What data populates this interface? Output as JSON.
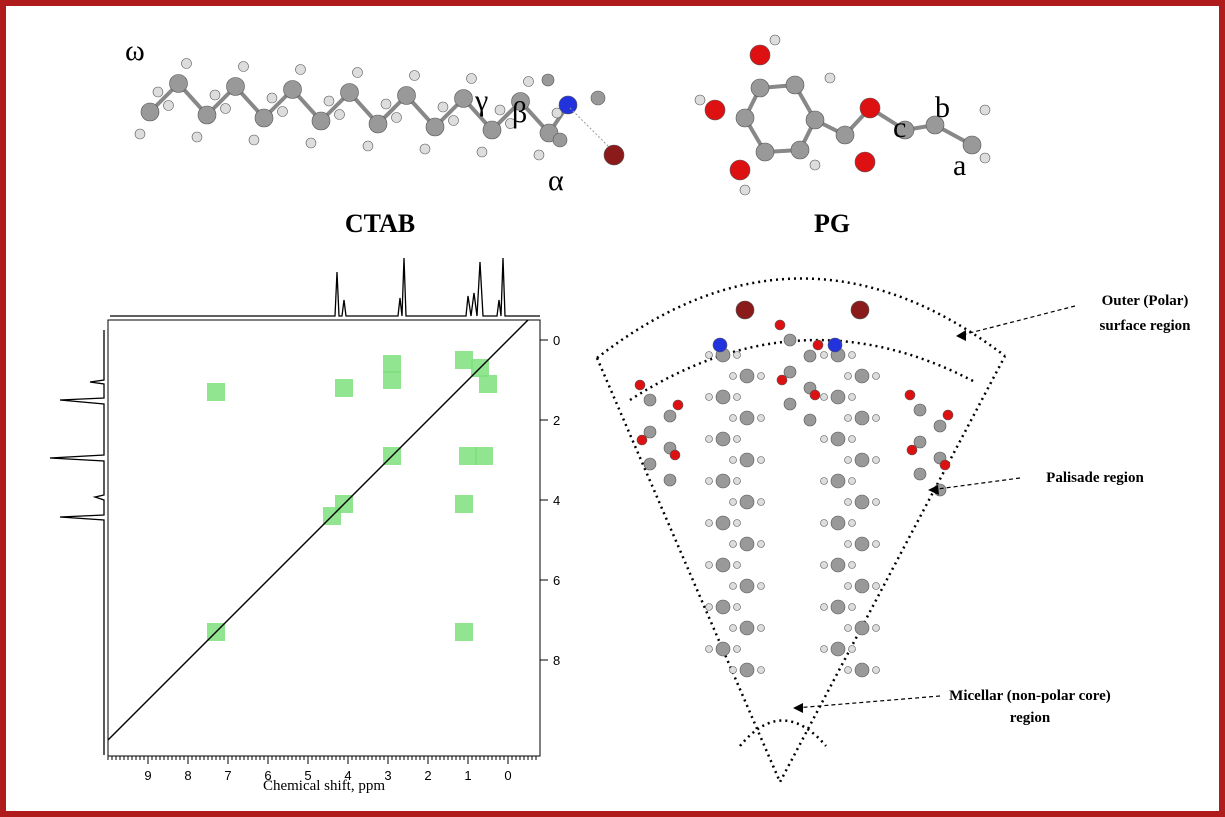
{
  "molecules": [
    {
      "name": "CTAB",
      "labels": [
        "ω",
        "γ",
        "β",
        "α"
      ]
    },
    {
      "name": "PG",
      "labels": [
        "c",
        "b",
        "a"
      ]
    }
  ],
  "nmr": {
    "xlabel": "Chemical shift, ppm",
    "xlim": [
      10,
      -0.8
    ],
    "ylim": [
      -0.5,
      10.4
    ],
    "xticks": [
      9,
      8,
      7,
      6,
      5,
      4,
      3,
      2,
      1,
      0
    ],
    "yticks": [
      0,
      2,
      4,
      6,
      8
    ],
    "cross_peaks": [
      [
        0.7,
        0.7
      ],
      [
        1.1,
        0.5
      ],
      [
        0.5,
        1.1
      ],
      [
        2.9,
        0.6
      ],
      [
        2.9,
        1.0
      ],
      [
        1.0,
        2.9
      ],
      [
        0.6,
        2.9
      ],
      [
        2.9,
        2.9
      ],
      [
        4.4,
        4.4
      ],
      [
        7.3,
        7.3
      ],
      [
        7.3,
        1.3
      ],
      [
        4.1,
        1.2
      ],
      [
        1.1,
        4.1
      ],
      [
        1.1,
        7.3
      ],
      [
        4.1,
        4.1
      ]
    ]
  },
  "regions": [
    {
      "lines": [
        "Outer (Polar)",
        "surface region"
      ]
    },
    {
      "lines": [
        "Palisade region"
      ]
    },
    {
      "lines": [
        "Micellar (non-polar core)",
        "region"
      ]
    }
  ]
}
